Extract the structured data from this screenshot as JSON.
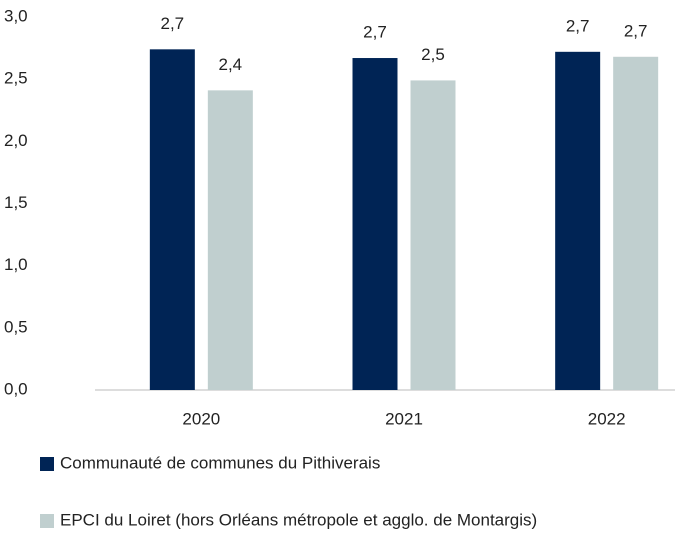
{
  "chart_data": {
    "type": "bar",
    "categories": [
      "2020",
      "2021",
      "2022"
    ],
    "series": [
      {
        "name": "Communauté de communes du Pithiverais",
        "color": "#002455",
        "values": [
          2.74,
          2.67,
          2.72
        ],
        "value_labels": [
          "2,7",
          "2,7",
          "2,7"
        ]
      },
      {
        "name": "EPCI du Loiret (hors Orléans métropole et agglo. de Montargis)",
        "color": "#c0cfcf",
        "values": [
          2.41,
          2.49,
          2.68
        ],
        "value_labels": [
          "2,4",
          "2,5",
          "2,7"
        ]
      }
    ],
    "ylim": [
      0,
      3
    ],
    "yticks": [
      {
        "value": 0,
        "label": "0,0"
      },
      {
        "value": 0.5,
        "label": "0,5"
      },
      {
        "value": 1,
        "label": "1,0"
      },
      {
        "value": 1.5,
        "label": "1,5"
      },
      {
        "value": 2,
        "label": "2,0"
      },
      {
        "value": 2.5,
        "label": "2,5"
      },
      {
        "value": 3,
        "label": "3,0"
      }
    ],
    "grid": false,
    "legend": "bottom"
  }
}
